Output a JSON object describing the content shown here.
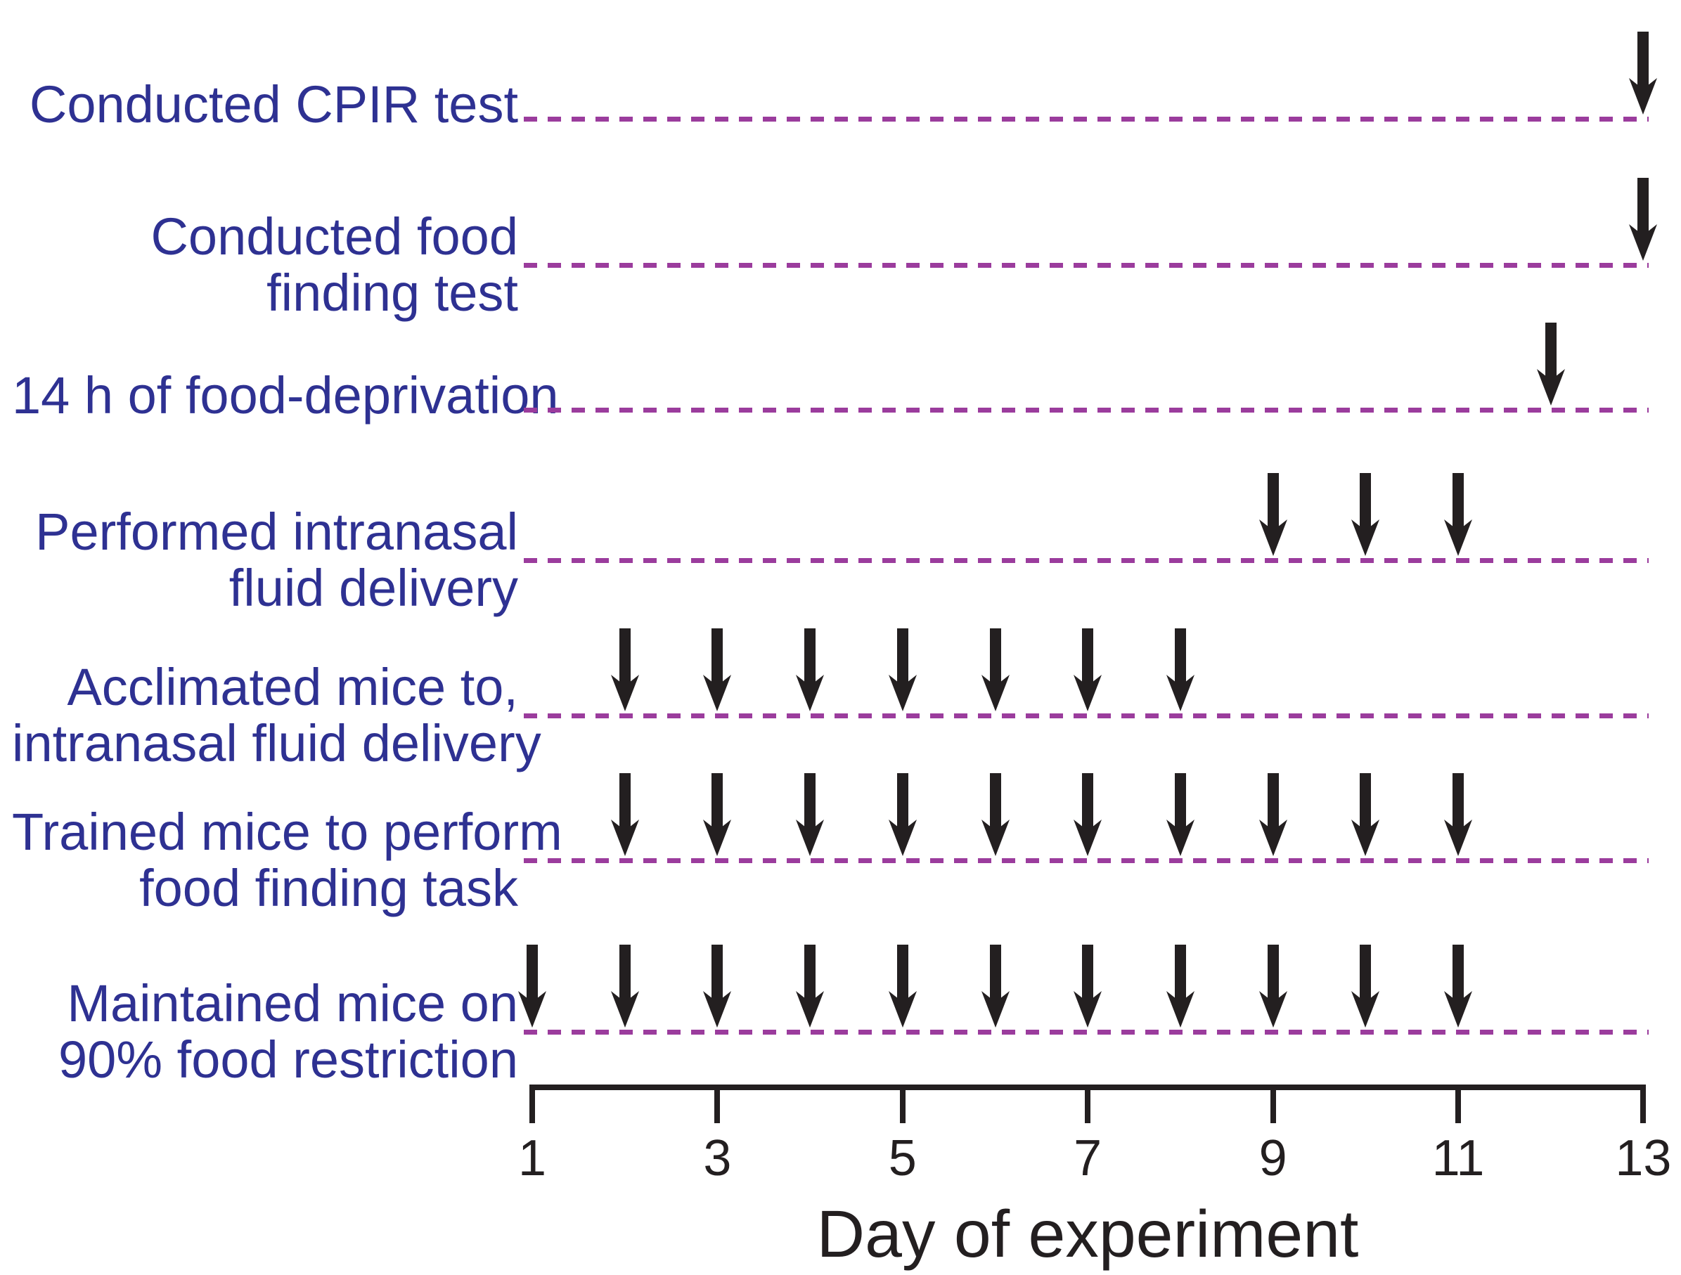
{
  "figure": {
    "rows": [
      {
        "id": "conducted-cpir-test",
        "label_lines": [
          "Conducted CPIR test"
        ],
        "arrow_days": [
          13
        ]
      },
      {
        "id": "conducted-food-finding-test",
        "label_lines": [
          "Conducted food",
          "finding test"
        ],
        "arrow_days": [
          13
        ]
      },
      {
        "id": "food-deprivation",
        "label_lines": [
          "14 h of food-deprivation"
        ],
        "arrow_days": [
          12
        ]
      },
      {
        "id": "performed-intranasal",
        "label_lines": [
          "Performed intranasal",
          "fluid delivery"
        ],
        "arrow_days": [
          9,
          10,
          11
        ]
      },
      {
        "id": "acclimated-mice",
        "label_lines": [
          "Acclimated mice to,",
          "intranasal fluid delivery"
        ],
        "arrow_days": [
          2,
          3,
          4,
          5,
          6,
          7,
          8
        ]
      },
      {
        "id": "trained-mice",
        "label_lines": [
          "Trained mice to perform",
          "food finding task"
        ],
        "arrow_days": [
          2,
          3,
          4,
          5,
          6,
          7,
          8,
          9,
          10,
          11
        ]
      },
      {
        "id": "maintained-mice",
        "label_lines": [
          "Maintained mice on",
          "90% food restriction"
        ],
        "arrow_days": [
          1,
          2,
          3,
          4,
          5,
          6,
          7,
          8,
          9,
          10,
          11
        ]
      }
    ],
    "axis": {
      "title": "Day of experiment",
      "tick_labels": [
        "1",
        "3",
        "5",
        "7",
        "9",
        "11",
        "13"
      ],
      "tick_days": [
        1,
        3,
        5,
        7,
        9,
        11,
        13
      ],
      "min_day": 1,
      "max_day": 13
    },
    "colors": {
      "label_blue": "#2e3192",
      "dash_purple": "#9b3c9d",
      "ink_black": "#231f20"
    },
    "marker_icon": "down-arrow-icon"
  },
  "chart_data": {
    "type": "scatter",
    "subtype": "event-timeline",
    "title": "",
    "xlabel": "Day of experiment",
    "ylabel": "",
    "xlim": [
      1,
      13
    ],
    "x_ticks": [
      1,
      3,
      5,
      7,
      9,
      11,
      13
    ],
    "grid": false,
    "legend_position": "none",
    "marker": "black-down-arrow",
    "row_guide_style": "purple-dashed-line",
    "series": [
      {
        "name": "Conducted CPIR test",
        "x": [
          13
        ]
      },
      {
        "name": "Conducted food finding test",
        "x": [
          13
        ]
      },
      {
        "name": "14 h of food-deprivation",
        "x": [
          12
        ]
      },
      {
        "name": "Performed intranasal fluid delivery",
        "x": [
          9,
          10,
          11
        ]
      },
      {
        "name": "Acclimated mice to, intranasal fluid delivery",
        "x": [
          2,
          3,
          4,
          5,
          6,
          7,
          8
        ]
      },
      {
        "name": "Trained mice to perform food finding task",
        "x": [
          2,
          3,
          4,
          5,
          6,
          7,
          8,
          9,
          10,
          11
        ]
      },
      {
        "name": "Maintained mice on 90% food restriction",
        "x": [
          1,
          2,
          3,
          4,
          5,
          6,
          7,
          8,
          9,
          10,
          11
        ]
      }
    ]
  }
}
